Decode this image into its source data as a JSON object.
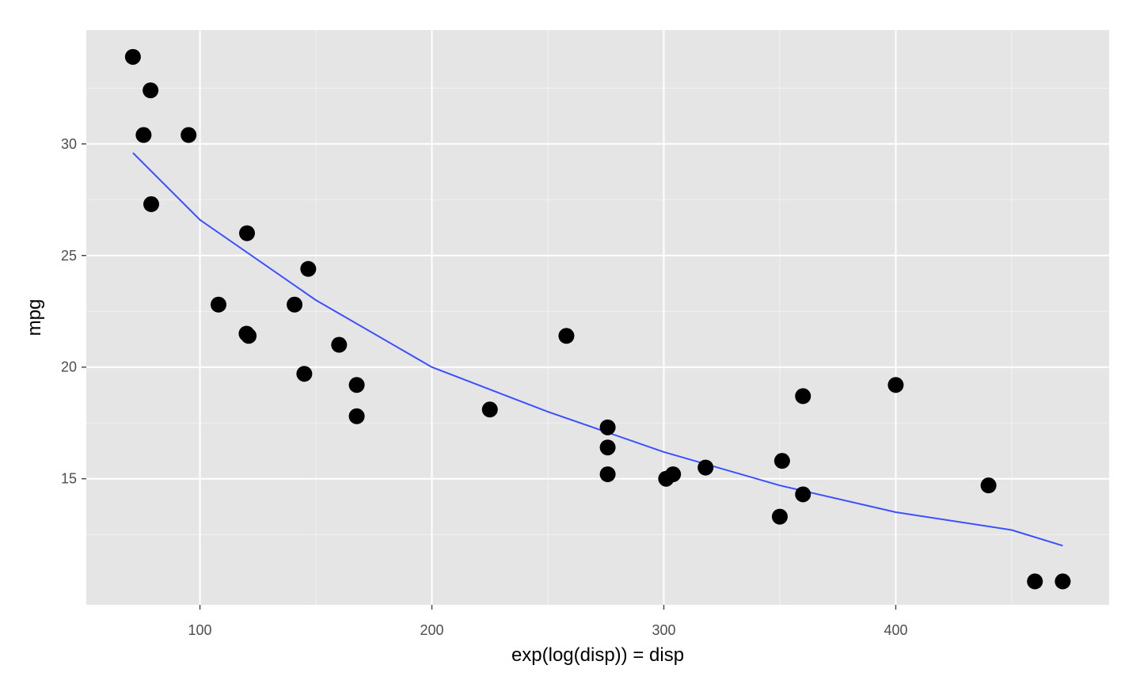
{
  "chart_data": {
    "type": "scatter",
    "title": "",
    "xlabel": "exp(log(disp)) = disp",
    "ylabel": "mpg",
    "xlim": [
      51,
      492
    ],
    "ylim": [
      9.35,
      35.1
    ],
    "x_ticks": [
      100,
      200,
      300,
      400
    ],
    "x_tick_labels": [
      "100",
      "200",
      "300",
      "400"
    ],
    "y_ticks": [
      15,
      20,
      25,
      30
    ],
    "y_tick_labels": [
      "15",
      "20",
      "25",
      "30"
    ],
    "grid": true,
    "legend": "none",
    "colors": {
      "panel": "#e5e5e5",
      "grid": "#ffffff",
      "points": "#000000",
      "fit_line": "#3a4fff"
    },
    "series": [
      {
        "mode": "points",
        "points": [
          [
            71.1,
            33.9
          ],
          [
            78.7,
            32.4
          ],
          [
            75.7,
            30.4
          ],
          [
            95.1,
            30.4
          ],
          [
            79.0,
            27.3
          ],
          [
            120.3,
            26.0
          ],
          [
            146.7,
            24.4
          ],
          [
            108.0,
            22.8
          ],
          [
            140.8,
            22.8
          ],
          [
            121.0,
            21.4
          ],
          [
            120.1,
            21.5
          ],
          [
            258.0,
            21.4
          ],
          [
            160.0,
            21.0
          ],
          [
            145.0,
            19.7
          ],
          [
            167.6,
            19.2
          ],
          [
            400.0,
            19.2
          ],
          [
            360.0,
            18.7
          ],
          [
            225.0,
            18.1
          ],
          [
            167.6,
            17.8
          ],
          [
            275.8,
            17.3
          ],
          [
            275.8,
            16.4
          ],
          [
            351.0,
            15.8
          ],
          [
            318.0,
            15.5
          ],
          [
            304.0,
            15.2
          ],
          [
            275.8,
            15.2
          ],
          [
            301.0,
            15.0
          ],
          [
            440.0,
            14.7
          ],
          [
            360.0,
            14.3
          ],
          [
            350.0,
            13.3
          ],
          [
            460.0,
            10.4
          ],
          [
            472.0,
            10.4
          ]
        ]
      },
      {
        "mode": "line",
        "points": [
          [
            71.1,
            29.6
          ],
          [
            100,
            26.6
          ],
          [
            150,
            23.0
          ],
          [
            200,
            20.0
          ],
          [
            250,
            18.0
          ],
          [
            300,
            16.2
          ],
          [
            350,
            14.7
          ],
          [
            400,
            13.5
          ],
          [
            450,
            12.7
          ],
          [
            472,
            12.0
          ]
        ]
      }
    ]
  }
}
